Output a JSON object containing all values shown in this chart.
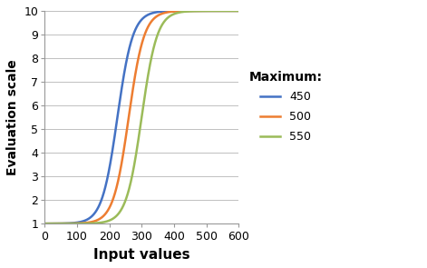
{
  "title": "",
  "xlabel": "Input values",
  "ylabel": "Evaluation scale",
  "xlim": [
    0,
    600
  ],
  "ylim": [
    1,
    10
  ],
  "xticks": [
    0,
    100,
    200,
    300,
    400,
    500,
    600
  ],
  "yticks": [
    1,
    2,
    3,
    4,
    5,
    6,
    7,
    8,
    9,
    10
  ],
  "series": [
    {
      "label": "450",
      "color": "#4472C4",
      "maximum": 450,
      "x0": 225
    },
    {
      "label": "500",
      "color": "#ED7D31",
      "maximum": 500,
      "x0": 260
    },
    {
      "label": "550",
      "color": "#9BBB59",
      "maximum": 550,
      "x0": 300
    }
  ],
  "legend_title": "Maximum:",
  "y_min": 1,
  "y_max": 10,
  "growth_rate": 0.042,
  "background_color": "#FFFFFF",
  "grid_color": "#C0C0C0"
}
